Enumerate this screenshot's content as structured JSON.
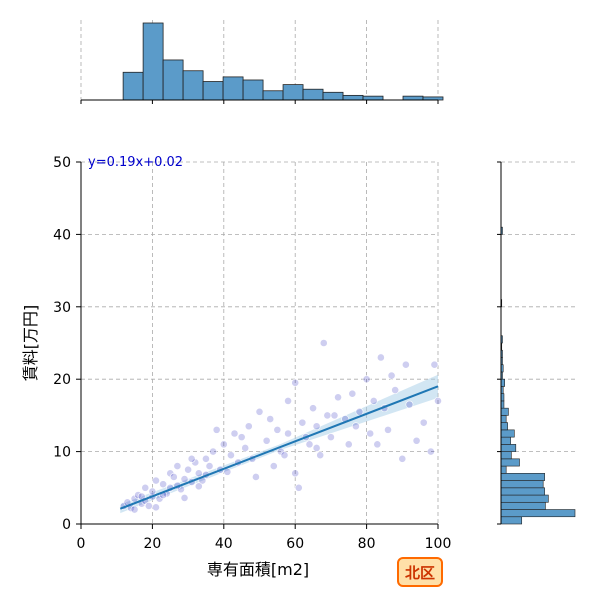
{
  "chart_data": {
    "type": "scatter",
    "layout": "joint-plot",
    "xlabel": "専有面積[m2]",
    "ylabel": "賃料[万円]",
    "xlim": [
      0,
      100
    ],
    "ylim": [
      0,
      50
    ],
    "xticks": [
      "0",
      "20",
      "40",
      "60",
      "80",
      "100"
    ],
    "yticks": [
      "0",
      "10",
      "20",
      "30",
      "40",
      "50"
    ],
    "grid": true,
    "annotation": "y=0.19x+0.02",
    "badge": "北区",
    "regression": {
      "slope": 0.19,
      "intercept": 0.02,
      "x_range": [
        11,
        100
      ],
      "color": "#1f77b4",
      "band_color": "#a6cde8"
    },
    "point_color": "#2222bb",
    "bar_color": "#5b9bc9",
    "points_sample": [
      [
        12,
        2.5
      ],
      [
        13,
        3.0
      ],
      [
        14,
        2.2
      ],
      [
        15,
        3.5
      ],
      [
        16,
        4.0
      ],
      [
        17,
        2.8
      ],
      [
        18,
        3.2
      ],
      [
        18,
        5.0
      ],
      [
        19,
        2.5
      ],
      [
        20,
        3.8
      ],
      [
        20,
        4.5
      ],
      [
        21,
        6.0
      ],
      [
        22,
        3.5
      ],
      [
        23,
        5.5
      ],
      [
        24,
        4.2
      ],
      [
        25,
        7.0
      ],
      [
        25,
        5.0
      ],
      [
        26,
        6.5
      ],
      [
        27,
        8.0
      ],
      [
        28,
        4.8
      ],
      [
        29,
        6.2
      ],
      [
        30,
        7.5
      ],
      [
        31,
        5.8
      ],
      [
        32,
        8.5
      ],
      [
        33,
        7.0
      ],
      [
        34,
        6.0
      ],
      [
        35,
        9.0
      ],
      [
        36,
        8.0
      ],
      [
        37,
        10.0
      ],
      [
        38,
        13.0
      ],
      [
        39,
        7.5
      ],
      [
        40,
        11.0
      ],
      [
        42,
        9.5
      ],
      [
        44,
        8.5
      ],
      [
        45,
        12.0
      ],
      [
        46,
        10.5
      ],
      [
        48,
        9.0
      ],
      [
        50,
        15.5
      ],
      [
        52,
        11.5
      ],
      [
        54,
        8.0
      ],
      [
        55,
        13.0
      ],
      [
        56,
        10.0
      ],
      [
        58,
        12.5
      ],
      [
        58,
        17.0
      ],
      [
        60,
        19.5
      ],
      [
        60,
        7.0
      ],
      [
        61,
        5.0
      ],
      [
        62,
        14.0
      ],
      [
        64,
        11.0
      ],
      [
        65,
        16.0
      ],
      [
        66,
        13.5
      ],
      [
        67,
        9.5
      ],
      [
        68,
        25.0
      ],
      [
        69,
        15.0
      ],
      [
        70,
        12.0
      ],
      [
        72,
        17.5
      ],
      [
        74,
        14.5
      ],
      [
        75,
        11.0
      ],
      [
        76,
        18.0
      ],
      [
        78,
        15.5
      ],
      [
        80,
        20.0
      ],
      [
        81,
        12.5
      ],
      [
        82,
        17.0
      ],
      [
        84,
        23.0
      ],
      [
        85,
        16.0
      ],
      [
        86,
        13.0
      ],
      [
        88,
        18.5
      ],
      [
        90,
        9.0
      ],
      [
        91,
        22.0
      ],
      [
        92,
        16.5
      ],
      [
        94,
        11.5
      ],
      [
        96,
        14.0
      ],
      [
        98,
        10.0
      ],
      [
        99,
        22.0
      ],
      [
        100,
        17.0
      ],
      [
        15,
        2.0
      ],
      [
        17,
        3.8
      ],
      [
        21,
        2.3
      ],
      [
        23,
        4.0
      ],
      [
        27,
        5.3
      ],
      [
        29,
        3.6
      ],
      [
        31,
        9.0
      ],
      [
        33,
        5.2
      ],
      [
        35,
        6.8
      ],
      [
        41,
        7.2
      ],
      [
        43,
        12.5
      ],
      [
        47,
        13.5
      ],
      [
        49,
        6.5
      ],
      [
        53,
        14.5
      ],
      [
        57,
        9.5
      ],
      [
        63,
        12.0
      ],
      [
        66,
        10.5
      ],
      [
        71,
        15.0
      ],
      [
        77,
        13.5
      ],
      [
        83,
        11.0
      ],
      [
        87,
        20.5
      ]
    ],
    "top_histogram": {
      "bin_edges": [
        0,
        5.6,
        11.2,
        16.8,
        22.4,
        28,
        33.6,
        39.2,
        44.8,
        50.4,
        56,
        61.6,
        67.2,
        72.8,
        78.4,
        84,
        89.6,
        95.2,
        100.8
      ],
      "bins_start": [
        11.8,
        17.4,
        23,
        28.6,
        34.2,
        39.8,
        45.4,
        51,
        56.6,
        62.2,
        67.8,
        73.4,
        79,
        84.6,
        90.2,
        95.8
      ],
      "relative_heights": [
        0.36,
        1.0,
        0.52,
        0.38,
        0.24,
        0.3,
        0.26,
        0.12,
        0.2,
        0.14,
        0.1,
        0.06,
        0.05,
        0,
        0.05,
        0.04
      ]
    },
    "right_histogram": {
      "bin_width": 1.0,
      "bins_start": [
        0,
        1,
        2,
        3,
        4,
        5,
        6,
        7,
        8,
        9,
        10,
        11,
        12,
        13,
        14,
        15,
        16,
        17,
        18,
        19,
        20,
        21,
        22,
        23,
        24,
        25,
        30,
        40
      ],
      "relative_heights": [
        0.28,
        1.0,
        0.6,
        0.64,
        0.59,
        0.57,
        0.59,
        0.07,
        0.25,
        0.14,
        0.2,
        0.13,
        0.18,
        0.09,
        0.07,
        0.1,
        0.04,
        0.04,
        0.03,
        0.05,
        0.02,
        0.03,
        0.02,
        0.02,
        0.01,
        0.02,
        0.01,
        0.02
      ]
    }
  }
}
